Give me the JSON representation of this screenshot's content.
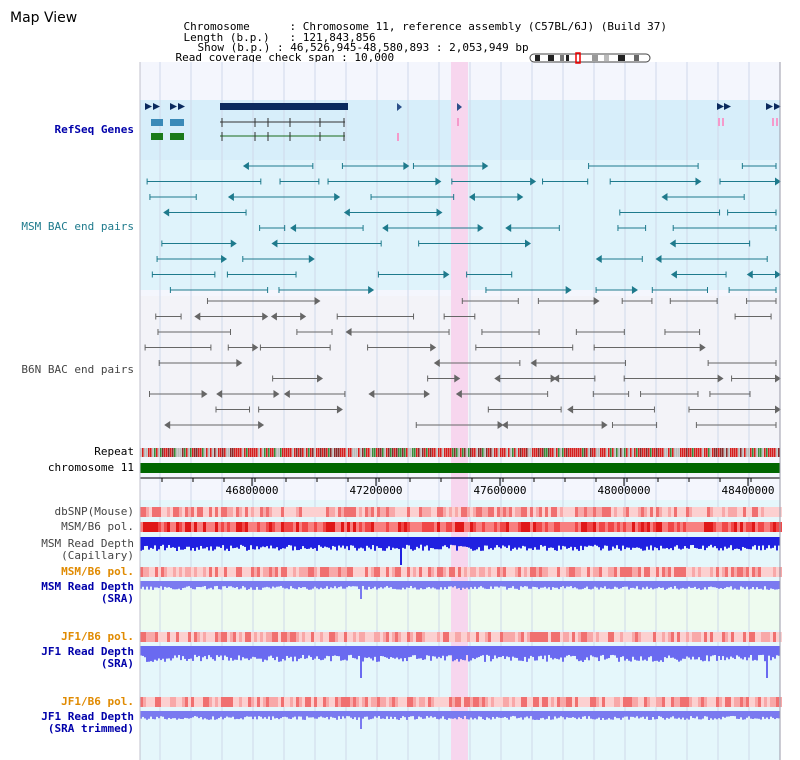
{
  "header": {
    "title": "Map View",
    "chromosome_key": "Chromosome",
    "chromosome_val": "Chromosome 11, reference assembly (C57BL/6J) (Build 37)",
    "length_key": "Length (b.p.)",
    "length_val": "121,843,856",
    "show_key": "Show (b.p.)",
    "show_val": "46,526,945-48,580,893 : 2,053,949 bp",
    "span_key": "Read coverage check span",
    "span_val": "10,000",
    "sep": ":"
  },
  "tracks": {
    "refseq": "RefSeq Genes",
    "msm_bac": "MSM BAC end pairs",
    "b6n_bac": "B6N BAC end pairs",
    "repeat": "Repeat",
    "chromosome": "chromosome 11",
    "dbsnp": "dbSNP(Mouse)",
    "msm_pol1": "MSM/B6 pol.",
    "msm_depth_cap_1": "MSM Read Depth",
    "msm_depth_cap_2": "(Capillary)",
    "msm_pol2": "MSM/B6 pol.",
    "msm_depth_sra_1": "MSM Read Depth",
    "msm_depth_sra_2": "(SRA)",
    "jf1_pol1": "JF1/B6 pol.",
    "jf1_depth_sra_1": "JF1 Read Depth",
    "jf1_depth_sra_2": "(SRA)",
    "jf1_pol2": "JF1/B6 pol.",
    "jf1_depth_trim_1": "JF1 Read Depth",
    "jf1_depth_trim_2": "(SRA trimmed)"
  },
  "axis": {
    "ticks": [
      "46800000",
      "47200000",
      "47600000",
      "48000000",
      "48400000"
    ]
  },
  "colors": {
    "track_bg": "#dff3fb",
    "refseq_bg": "#d7eefa",
    "highlight": "#f7d6ee",
    "label_dark": "#444444",
    "label_blue": "#0000aa",
    "label_orange": "#e08a00",
    "bac_msm": "#1e7a8c",
    "bac_b6n": "#666666",
    "chromosome_bar": "#006600",
    "depth_blue": "#2020e0",
    "depth_light": "#7a7af0"
  }
}
